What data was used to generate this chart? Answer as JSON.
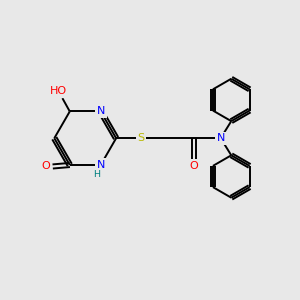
{
  "background_color": "#e8e8e8",
  "bond_color": "#000000",
  "atom_colors": {
    "N": "#0000ff",
    "O": "#ff0000",
    "S": "#b8b800",
    "H": "#008080",
    "C": "#000000"
  },
  "font_size": 8.0,
  "lw": 1.4
}
